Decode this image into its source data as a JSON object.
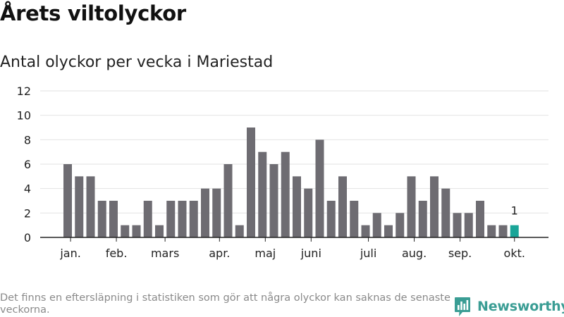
{
  "header": {
    "title": "Årets viltolyckor",
    "subtitle": "Antal olyckor per vecka i Mariestad"
  },
  "chart_data": {
    "type": "bar",
    "title": "Årets viltolyckor",
    "subtitle": "Antal olyckor per vecka i Mariestad",
    "xlabel": "",
    "ylabel": "",
    "ylim": [
      0,
      12
    ],
    "yticks": [
      0,
      2,
      4,
      6,
      8,
      10,
      12
    ],
    "grid": true,
    "values": [
      6,
      5,
      5,
      3,
      3,
      1,
      1,
      3,
      1,
      3,
      3,
      3,
      4,
      4,
      6,
      1,
      9,
      7,
      6,
      7,
      5,
      4,
      8,
      3,
      5,
      3,
      1,
      2,
      1,
      2,
      5,
      3,
      5,
      4,
      2,
      2,
      3,
      1,
      1,
      1
    ],
    "month_labels": [
      {
        "label": "jan.",
        "bar_index": 0.25
      },
      {
        "label": "feb.",
        "bar_index": 4.25
      },
      {
        "label": "mars",
        "bar_index": 8.5
      },
      {
        "label": "apr.",
        "bar_index": 13.25
      },
      {
        "label": "maj",
        "bar_index": 17.25
      },
      {
        "label": "juni",
        "bar_index": 21.25
      },
      {
        "label": "juli",
        "bar_index": 26.25
      },
      {
        "label": "aug.",
        "bar_index": 30.25
      },
      {
        "label": "sep.",
        "bar_index": 34.25
      },
      {
        "label": "okt.",
        "bar_index": 39
      }
    ],
    "highlight_index": 39,
    "highlight_label": "1",
    "bar_color": "#6e6c72",
    "highlight_color": "#1aa598",
    "grid_color": "#e2e2e2",
    "axis_color": "#222222"
  },
  "footer": {
    "note": "Det finns en eftersläpning i statistiken som gör att några olyckor kan saknas de senaste veckorna.",
    "brand": "Newsworthy",
    "brand_icon": "newsworthy-logo-icon",
    "brand_color": "#3a9d94"
  }
}
